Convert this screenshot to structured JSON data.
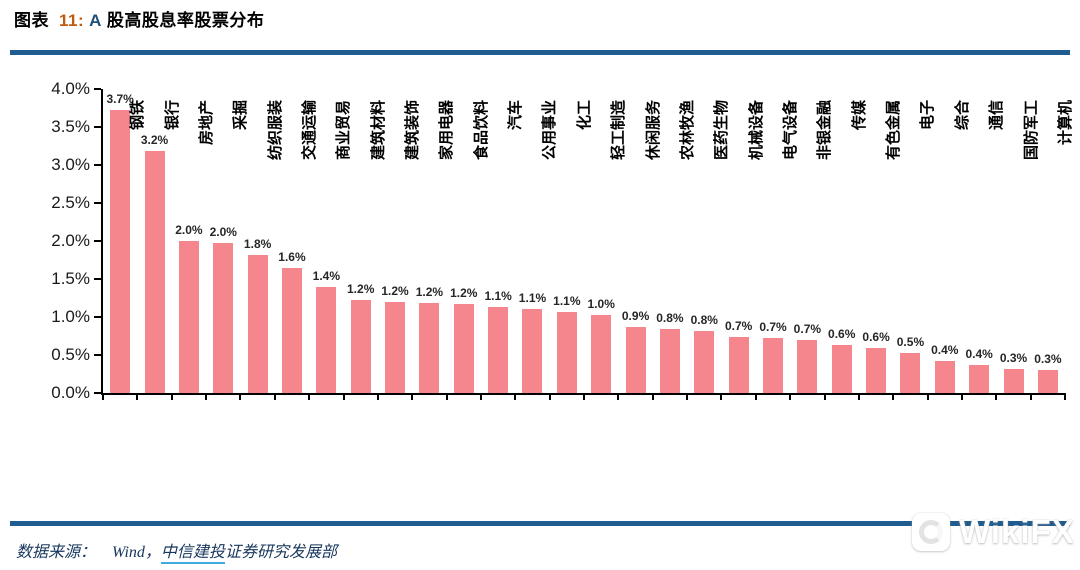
{
  "header": {
    "title_prefix": "图表",
    "title_number": "11:",
    "title_market": "A",
    "title_rest": "股高股息率股票分布"
  },
  "colors": {
    "bar": "#F5868D",
    "rule_blue": "#1F5C8F",
    "title_number_orange": "#C05A11",
    "title_market_navy": "#1F4E79",
    "footer_navy": "#17365D",
    "underline_blue": "#3FA9E0"
  },
  "chart_data": {
    "type": "bar",
    "title": "A股高股息率股票分布",
    "categories": [
      "钢铁",
      "银行",
      "房地产",
      "采掘",
      "纺织服装",
      "交通运输",
      "商业贸易",
      "建筑材料",
      "建筑装饰",
      "家用电器",
      "食品饮料",
      "汽车",
      "公用事业",
      "化工",
      "轻工制造",
      "休闲服务",
      "农林牧渔",
      "医药生物",
      "机械设备",
      "电气设备",
      "非银金融",
      "传媒",
      "有色金属",
      "电子",
      "综合",
      "通信",
      "国防军工",
      "计算机"
    ],
    "values": [
      3.7,
      3.2,
      2.0,
      2.0,
      1.8,
      1.6,
      1.4,
      1.2,
      1.2,
      1.2,
      1.2,
      1.1,
      1.1,
      1.1,
      1.0,
      0.9,
      0.8,
      0.8,
      0.7,
      0.7,
      0.7,
      0.6,
      0.6,
      0.5,
      0.4,
      0.4,
      0.3,
      0.3
    ],
    "data_labels": [
      "3.7%",
      "3.2%",
      "2.0%",
      "2.0%",
      "1.8%",
      "1.6%",
      "1.4%",
      "1.2%",
      "1.2%",
      "1.2%",
      "1.2%",
      "1.1%",
      "1.1%",
      "1.1%",
      "1.0%",
      "0.9%",
      "0.8%",
      "0.8%",
      "0.7%",
      "0.7%",
      "0.7%",
      "0.6%",
      "0.6%",
      "0.5%",
      "0.4%",
      "0.4%",
      "0.3%",
      "0.3%"
    ],
    "bar_heights_precise": [
      3.73,
      3.18,
      2.0,
      1.97,
      1.81,
      1.65,
      1.4,
      1.23,
      1.2,
      1.18,
      1.17,
      1.13,
      1.1,
      1.07,
      1.02,
      0.87,
      0.84,
      0.82,
      0.74,
      0.72,
      0.7,
      0.63,
      0.59,
      0.52,
      0.42,
      0.37,
      0.32,
      0.3
    ],
    "xlabel": "",
    "ylabel": "",
    "ylim": [
      0,
      4
    ],
    "ytick_step": 0.5,
    "y_tick_labels": [
      "4.0%",
      "3.5%",
      "3.0%",
      "2.5%",
      "2.0%",
      "1.5%",
      "1.0%",
      "0.5%",
      "0.0%"
    ],
    "grid": false,
    "legend": "none",
    "bar_color": "#F5868D"
  },
  "footer": {
    "source_label": "数据来源：",
    "source_wind": "Wind，",
    "source_underlined": "中信建投",
    "source_rest": "证券研究发展部"
  },
  "watermark": {
    "text": "WikiFX"
  }
}
